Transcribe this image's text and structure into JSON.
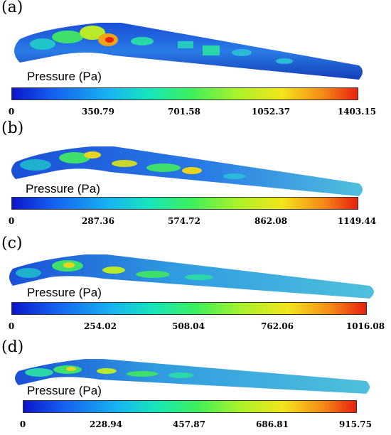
{
  "panels": [
    {
      "label": "(a)",
      "legend_title": "Pressure (Pa)",
      "ticks": [
        "0",
        "350.79",
        "701.58",
        "1052.37",
        "1403.15"
      ]
    },
    {
      "label": "(b)",
      "legend_title": "Pressure (Pa)",
      "ticks": [
        "0",
        "287.36",
        "574.72",
        "862.08",
        "1149.44"
      ]
    },
    {
      "label": "(c)",
      "legend_title": "Pressure (Pa)",
      "ticks": [
        "0",
        "254.02",
        "508.04",
        "762.06",
        "1016.08"
      ]
    },
    {
      "label": "(d)",
      "legend_title": "Pressure (Pa)",
      "ticks": [
        "0",
        "228.94",
        "457.87",
        "686.81",
        "915.75"
      ]
    }
  ],
  "colors": {
    "low": "#0b16c9",
    "mid": "#3cf05a",
    "high": "#e8210f",
    "pipe_body": "#1f6fd6",
    "pipe_tail": "#4fc0dc"
  }
}
